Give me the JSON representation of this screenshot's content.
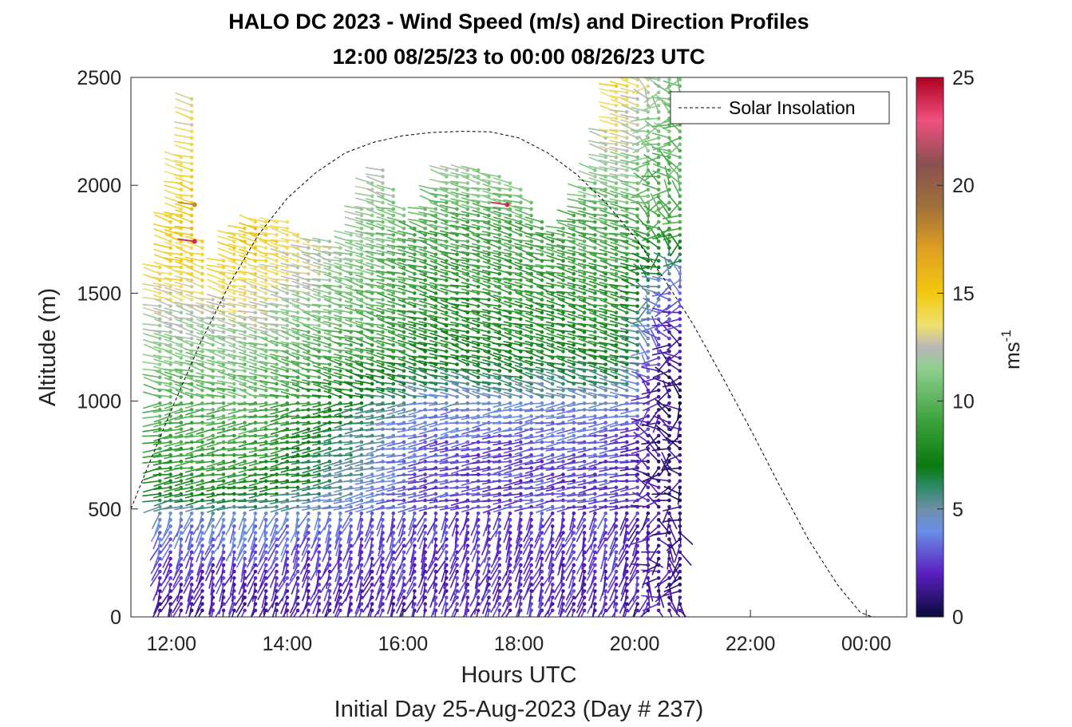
{
  "title": "HALO DC 2023 - Wind Speed (m/s) and Direction Profiles",
  "subtitle": "12:00 08/25/23 to 00:00 08/26/23  UTC",
  "chart_data": {
    "type": "wind_barb_profile",
    "title": "HALO DC 2023 - Wind Speed (m/s) and Direction Profiles",
    "subtitle": "12:00 08/25/23 to 00:00 08/26/23  UTC",
    "xlabel": "Hours UTC",
    "x_sublabel": "Initial Day 25-Aug-2023 (Day # 237)",
    "ylabel": "Altitude (m)",
    "xlim_hours": [
      11.3,
      24.7
    ],
    "ylim": [
      0,
      2500
    ],
    "x_ticks": [
      {
        "value": 12,
        "label": "12:00"
      },
      {
        "value": 14,
        "label": "14:00"
      },
      {
        "value": 16,
        "label": "16:00"
      },
      {
        "value": 18,
        "label": "18:00"
      },
      {
        "value": 20,
        "label": "20:00"
      },
      {
        "value": 22,
        "label": "22:00"
      },
      {
        "value": 24,
        "label": "00:00"
      }
    ],
    "y_ticks": [
      0,
      500,
      1000,
      1500,
      2000,
      2500
    ],
    "grid": false,
    "legend": {
      "position": "top-right",
      "entries": [
        "Solar Insolation"
      ]
    },
    "colorbar": {
      "label": "ms-1",
      "range": [
        0,
        25
      ],
      "ticks": [
        0,
        5,
        10,
        15,
        20,
        25
      ],
      "stops": [
        {
          "v": 0,
          "color": "#0a0a3a"
        },
        {
          "v": 2,
          "color": "#5a1fc0"
        },
        {
          "v": 4,
          "color": "#6a8fe8"
        },
        {
          "v": 5,
          "color": "#6f8fa8"
        },
        {
          "v": 6,
          "color": "#2e8a6a"
        },
        {
          "v": 7,
          "color": "#0a7a10"
        },
        {
          "v": 9,
          "color": "#3aa03a"
        },
        {
          "v": 11.5,
          "color": "#8fcf8f"
        },
        {
          "v": 12.5,
          "color": "#b8b8b8"
        },
        {
          "v": 13.5,
          "color": "#f0e070"
        },
        {
          "v": 15,
          "color": "#f2c80f"
        },
        {
          "v": 17,
          "color": "#e0a020"
        },
        {
          "v": 19,
          "color": "#a0703a"
        },
        {
          "v": 21,
          "color": "#8a5050"
        },
        {
          "v": 23,
          "color": "#f05080"
        },
        {
          "v": 25,
          "color": "#b00020"
        }
      ]
    },
    "solar_insolation": {
      "name": "Solar Insolation",
      "style": "dashed",
      "color": "#000000",
      "points": [
        [
          11.3,
          500
        ],
        [
          11.6,
          700
        ],
        [
          12,
          960
        ],
        [
          12.5,
          1270
        ],
        [
          13,
          1540
        ],
        [
          13.5,
          1770
        ],
        [
          14,
          1940
        ],
        [
          14.5,
          2060
        ],
        [
          15,
          2150
        ],
        [
          15.5,
          2200
        ],
        [
          16,
          2230
        ],
        [
          16.5,
          2245
        ],
        [
          17,
          2250
        ],
        [
          17.5,
          2248
        ],
        [
          18,
          2220
        ],
        [
          18.5,
          2150
        ],
        [
          19,
          2050
        ],
        [
          19.5,
          1920
        ],
        [
          20,
          1760
        ],
        [
          20.5,
          1570
        ],
        [
          21,
          1360
        ],
        [
          21.5,
          1120
        ],
        [
          22,
          870
        ],
        [
          22.5,
          610
        ],
        [
          23,
          360
        ],
        [
          23.5,
          150
        ],
        [
          23.9,
          20
        ],
        [
          24.1,
          0
        ],
        [
          24.6,
          0
        ]
      ]
    },
    "wind_field": {
      "profile_interval_hours": 0.1833,
      "first_profile_hour": 11.8,
      "last_profile_hour": 20.85,
      "top_altitude_by_hour": [
        [
          11.8,
          1620
        ],
        [
          12.4,
          2500
        ],
        [
          12.6,
          1360
        ],
        [
          13.0,
          1760
        ],
        [
          13.4,
          1830
        ],
        [
          14.0,
          1830
        ],
        [
          14.4,
          1760
        ],
        [
          15.0,
          1730
        ],
        [
          15.6,
          2100
        ],
        [
          16.2,
          1800
        ],
        [
          16.8,
          2100
        ],
        [
          17.3,
          2090
        ],
        [
          18.0,
          2000
        ],
        [
          18.6,
          1780
        ],
        [
          19.0,
          1900
        ],
        [
          19.4,
          2150
        ],
        [
          19.7,
          2500
        ],
        [
          20.85,
          2500
        ]
      ],
      "speed_profile_ms": [
        [
          0,
          1.5
        ],
        [
          250,
          2.5
        ],
        [
          450,
          4.0
        ],
        [
          600,
          8.0
        ],
        [
          900,
          9.5
        ],
        [
          1200,
          11.0
        ],
        [
          1500,
          13.5
        ],
        [
          1800,
          15.0
        ],
        [
          2100,
          14.0
        ],
        [
          2500,
          13.0
        ]
      ],
      "afternoon_speed_profile_ms": [
        [
          0,
          2.0
        ],
        [
          400,
          2.5
        ],
        [
          800,
          2.8
        ],
        [
          1000,
          4.5
        ],
        [
          1200,
          7.5
        ],
        [
          1500,
          8.5
        ],
        [
          1800,
          9.5
        ],
        [
          2100,
          12.0
        ],
        [
          2500,
          14.5
        ]
      ],
      "late_profile_speed_ms": [
        [
          0,
          1.5
        ],
        [
          600,
          1.0
        ],
        [
          1100,
          0.8
        ],
        [
          1500,
          3.0
        ],
        [
          1800,
          9.0
        ],
        [
          2500,
          11.0
        ]
      ],
      "notable_barbs": [
        {
          "hour": 12.4,
          "altitude": 1740,
          "speed": 24
        },
        {
          "hour": 12.4,
          "altitude": 1910,
          "speed": 18
        },
        {
          "hour": 17.8,
          "altitude": 1910,
          "speed": 24
        }
      ]
    }
  },
  "colorbar_label_main": "ms",
  "colorbar_label_exp": "-1"
}
